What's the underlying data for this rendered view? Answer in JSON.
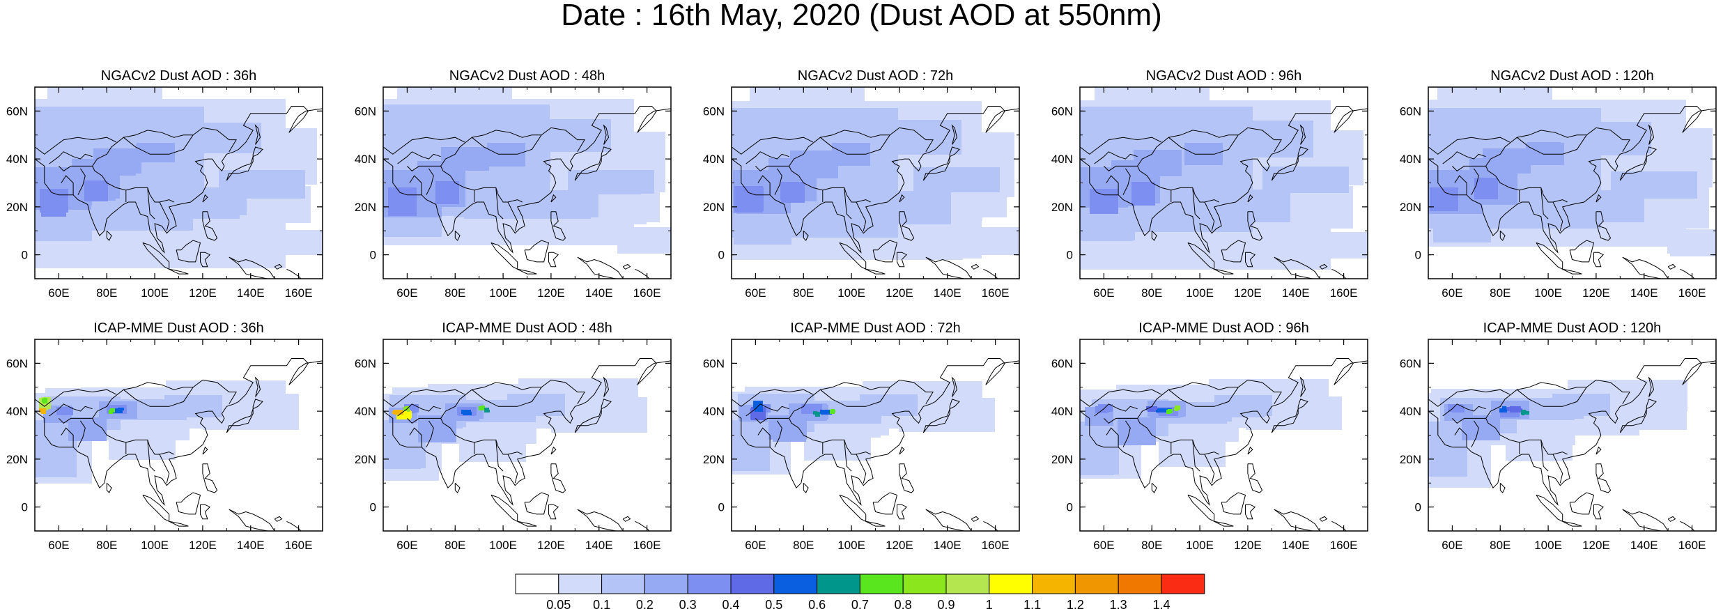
{
  "title": "Date : 16th May, 2020 (Dust AOD at 550nm)",
  "lon_ticks": [
    "60E",
    "80E",
    "100E",
    "120E",
    "140E",
    "160E"
  ],
  "lat_ticks": [
    "60N",
    "40N",
    "20N",
    "0"
  ],
  "panels": [
    {
      "title": "NGACv2 Dust AOD : 36h",
      "model": "NGACv2",
      "lead": "36h"
    },
    {
      "title": "NGACv2 Dust AOD : 48h",
      "model": "NGACv2",
      "lead": "48h"
    },
    {
      "title": "NGACv2 Dust AOD : 72h",
      "model": "NGACv2",
      "lead": "72h"
    },
    {
      "title": "NGACv2 Dust AOD : 96h",
      "model": "NGACv2",
      "lead": "96h"
    },
    {
      "title": "NGACv2 Dust AOD : 120h",
      "model": "NGACv2",
      "lead": "120h"
    },
    {
      "title": "ICAP-MME Dust AOD : 36h",
      "model": "ICAP-MME",
      "lead": "36h"
    },
    {
      "title": "ICAP-MME Dust AOD : 48h",
      "model": "ICAP-MME",
      "lead": "48h"
    },
    {
      "title": "ICAP-MME Dust AOD : 72h",
      "model": "ICAP-MME",
      "lead": "72h"
    },
    {
      "title": "ICAP-MME Dust AOD : 96h",
      "model": "ICAP-MME",
      "lead": "96h"
    },
    {
      "title": "ICAP-MME Dust AOD : 120h",
      "model": "ICAP-MME",
      "lead": "120h"
    }
  ],
  "colorbar": {
    "labels": [
      "0.05",
      "0.1",
      "0.2",
      "0.3",
      "0.4",
      "0.5",
      "0.6",
      "0.7",
      "0.8",
      "0.9",
      "1",
      "1.1",
      "1.2",
      "1.3",
      "1.4"
    ],
    "colors": [
      "#ffffff",
      "#d2dcfa",
      "#b4c4f7",
      "#96aaf3",
      "#7d8ff0",
      "#5e6ae6",
      "#0a5fe0",
      "#00968c",
      "#5ae61e",
      "#8ce61e",
      "#b4e650",
      "#ffff00",
      "#f5b400",
      "#f09600",
      "#f07800",
      "#fa2d14"
    ]
  },
  "map": {
    "lon_range": [
      50,
      170
    ],
    "lat_range": [
      -10,
      70
    ],
    "ocean_color": "#ffffff",
    "coast_color": "#000000"
  }
}
